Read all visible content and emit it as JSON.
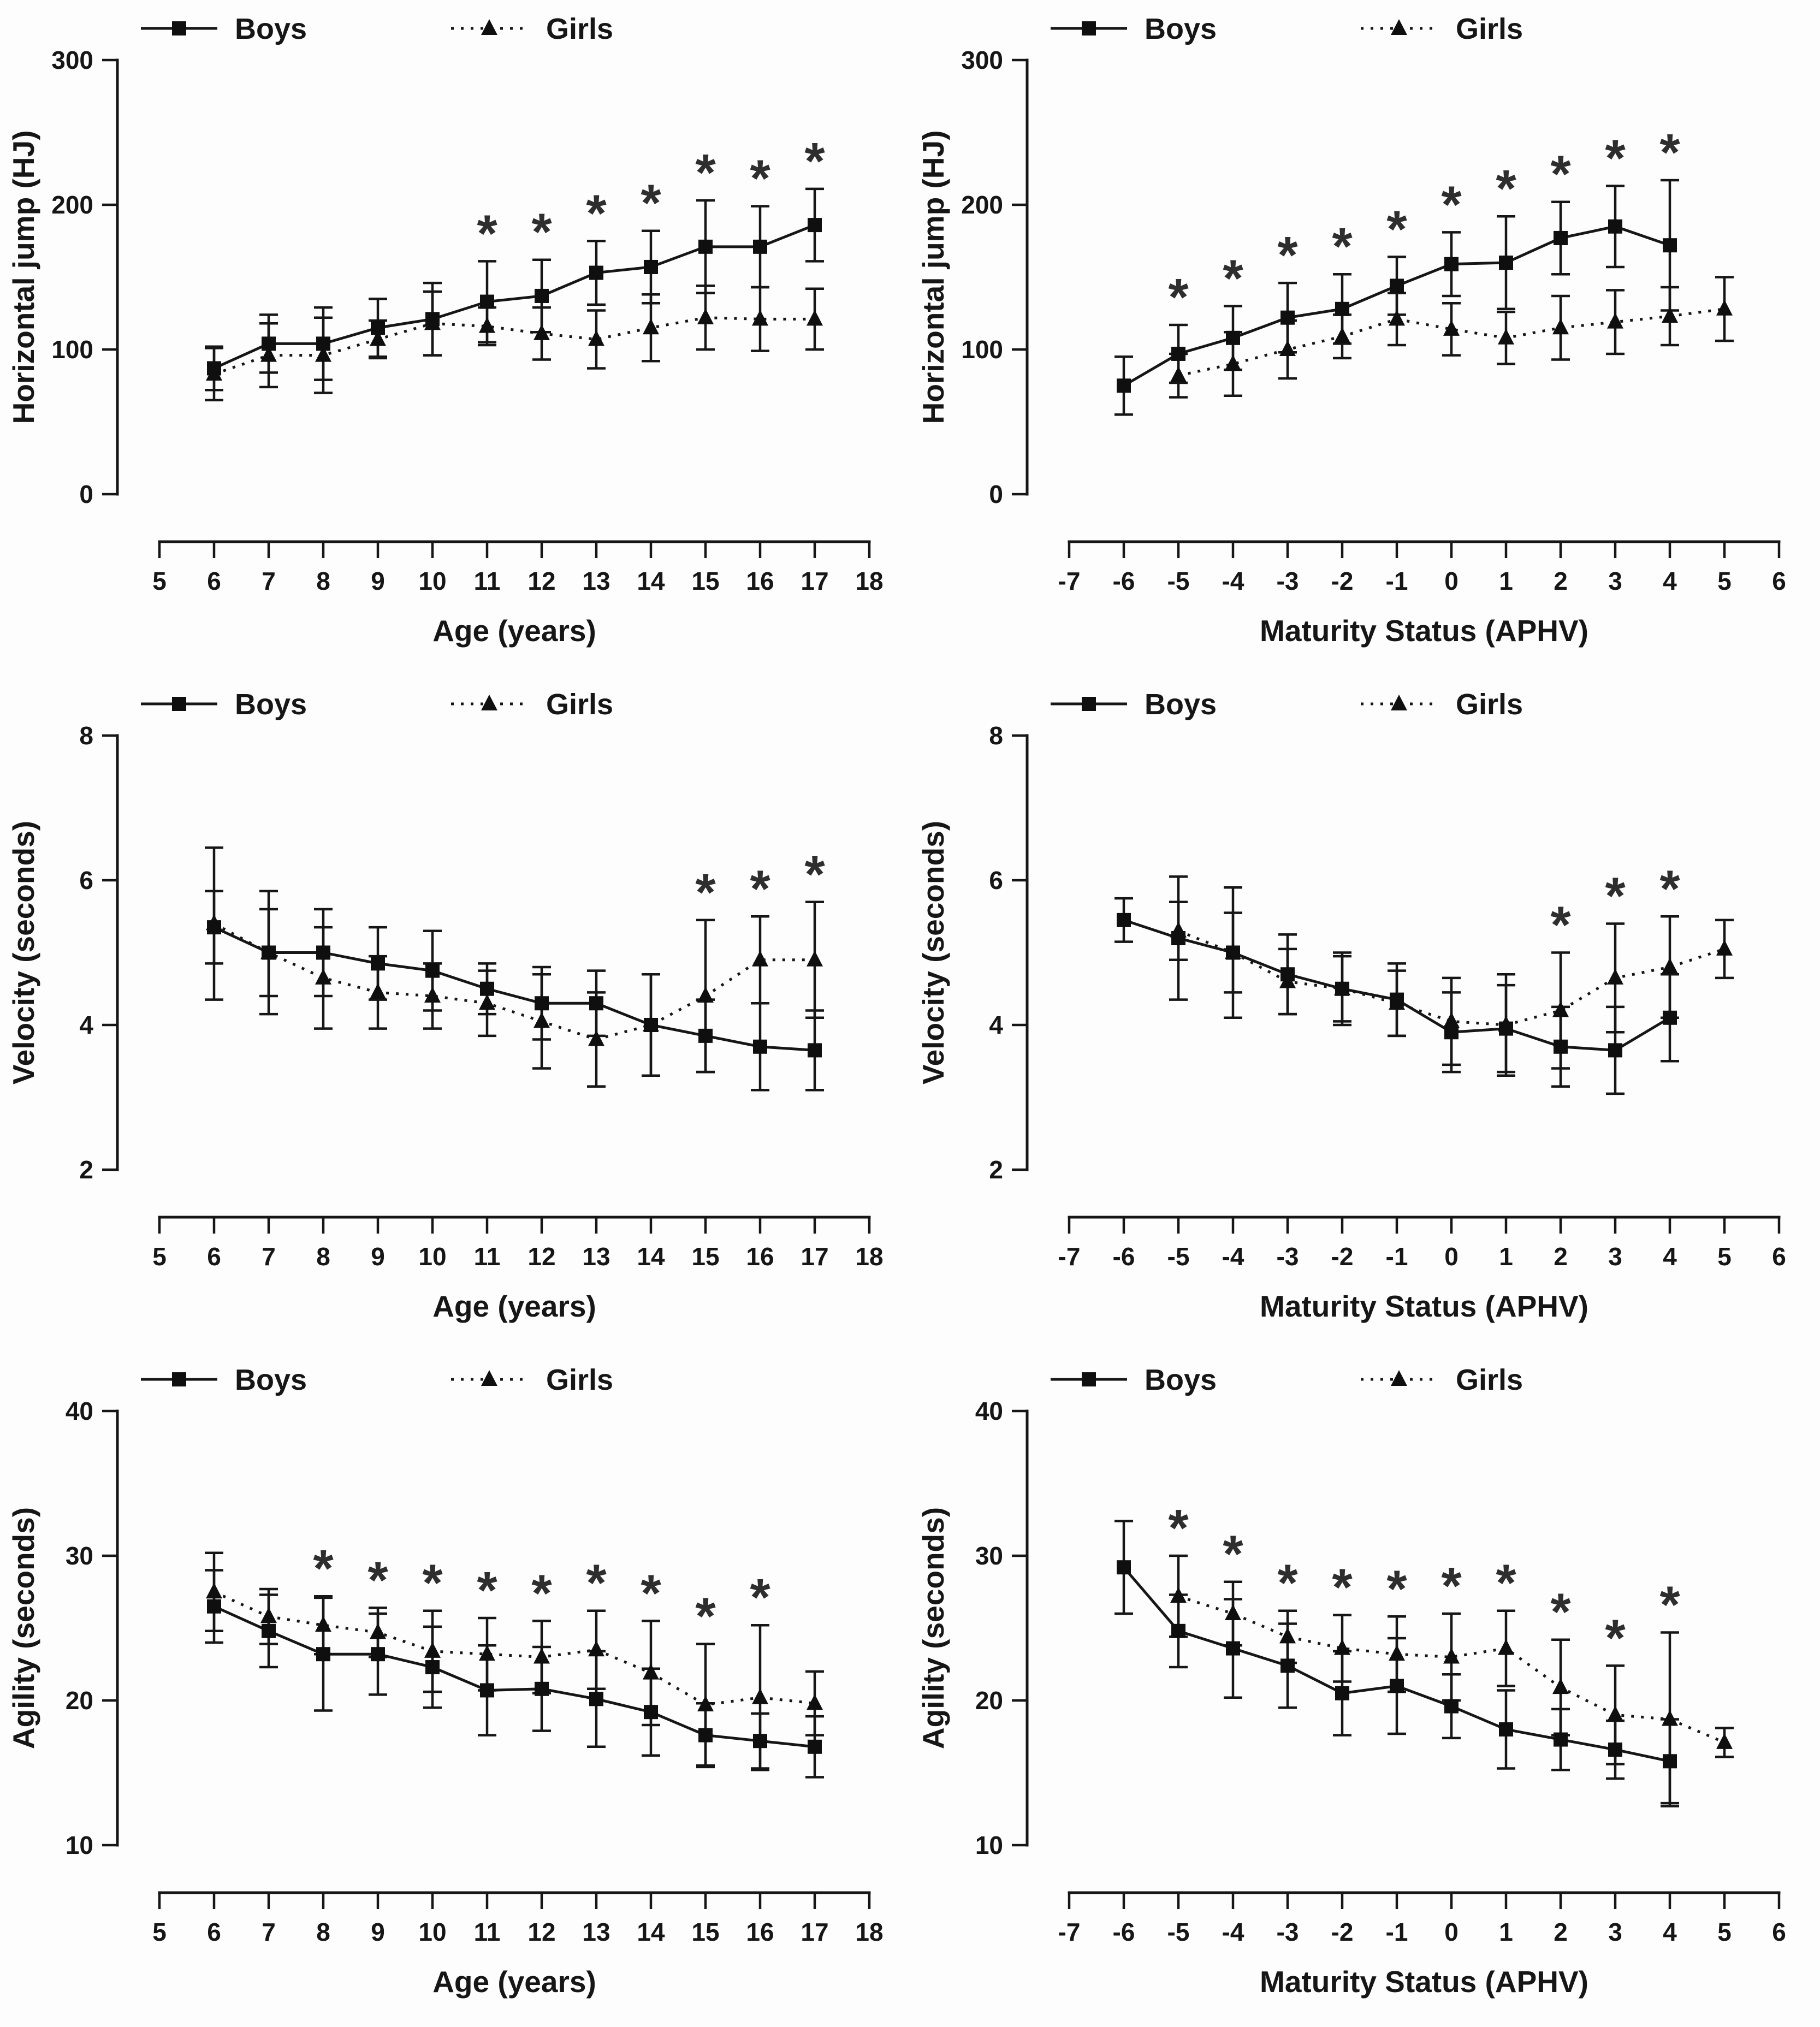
{
  "sig_marker": "*",
  "colors": {
    "ink": "#161616",
    "background": "#ffffff"
  },
  "legend": {
    "boys_label": "Boys",
    "girls_label": "Girls"
  },
  "chart_data": [
    {
      "type": "line",
      "panel": "top-left",
      "ylabel": "Horizontal jump (HJ)",
      "xlabel": "Age (years)",
      "ylim": [
        0,
        300
      ],
      "yticks": [
        0,
        100,
        200,
        300
      ],
      "xlim": [
        5,
        18
      ],
      "xticks": [
        5,
        6,
        7,
        8,
        9,
        10,
        11,
        12,
        13,
        14,
        15,
        16,
        17,
        18
      ],
      "grid": false,
      "legend_position": "top",
      "significant_x": [
        11,
        12,
        13,
        14,
        15,
        16,
        17
      ],
      "series": [
        {
          "name": "Boys",
          "marker": "square",
          "line": "solid",
          "x": [
            6,
            7,
            8,
            9,
            10,
            11,
            12,
            13,
            14,
            15,
            16,
            17
          ],
          "y": [
            87,
            104,
            104,
            115,
            121,
            133,
            137,
            153,
            157,
            171,
            171,
            186
          ],
          "err": [
            15,
            20,
            25,
            20,
            25,
            28,
            25,
            22,
            25,
            32,
            28,
            25
          ]
        },
        {
          "name": "Girls",
          "marker": "triangle",
          "line": "dotted",
          "x": [
            6,
            7,
            8,
            9,
            10,
            11,
            12,
            13,
            14,
            15,
            16,
            17
          ],
          "y": [
            83,
            96,
            96,
            107,
            118,
            116,
            111,
            107,
            115,
            122,
            121,
            121
          ],
          "err": [
            18,
            22,
            26,
            13,
            22,
            13,
            18,
            20,
            23,
            22,
            22,
            21
          ]
        }
      ]
    },
    {
      "type": "line",
      "panel": "top-right",
      "ylabel": "Horizontal jump (HJ)",
      "xlabel": "Maturity Status (APHV)",
      "ylim": [
        0,
        300
      ],
      "yticks": [
        0,
        100,
        200,
        300
      ],
      "xlim": [
        -7,
        6
      ],
      "xticks": [
        -7,
        -6,
        -5,
        -4,
        -3,
        -2,
        -1,
        0,
        1,
        2,
        3,
        4,
        5,
        6
      ],
      "grid": false,
      "legend_position": "top",
      "significant_x": [
        -5,
        -4,
        -3,
        -2,
        -1,
        0,
        1,
        2,
        3,
        4
      ],
      "series": [
        {
          "name": "Boys",
          "marker": "square",
          "line": "solid",
          "x": [
            -6,
            -5,
            -4,
            -3,
            -2,
            -1,
            0,
            1,
            2,
            3,
            4
          ],
          "y": [
            75,
            97,
            108,
            122,
            128,
            144,
            159,
            160,
            177,
            185,
            172
          ],
          "err": [
            20,
            20,
            22,
            24,
            24,
            20,
            22,
            32,
            25,
            28,
            45
          ]
        },
        {
          "name": "Girls",
          "marker": "triangle",
          "line": "dotted",
          "x": [
            -5,
            -4,
            -3,
            -2,
            -1,
            0,
            1,
            2,
            3,
            4,
            5
          ],
          "y": [
            82,
            90,
            100,
            109,
            121,
            114,
            108,
            115,
            119,
            123,
            128
          ],
          "err": [
            15,
            22,
            20,
            15,
            18,
            18,
            18,
            22,
            22,
            20,
            22
          ]
        }
      ]
    },
    {
      "type": "line",
      "panel": "middle-left",
      "ylabel": "Velocity (seconds)",
      "xlabel": "Age (years)",
      "ylim": [
        2,
        8
      ],
      "yticks": [
        2,
        4,
        6,
        8
      ],
      "xlim": [
        5,
        18
      ],
      "xticks": [
        5,
        6,
        7,
        8,
        9,
        10,
        11,
        12,
        13,
        14,
        15,
        16,
        17,
        18
      ],
      "grid": false,
      "legend_position": "top",
      "significant_x": [
        15,
        16,
        17
      ],
      "series": [
        {
          "name": "Boys",
          "marker": "square",
          "line": "solid",
          "x": [
            6,
            7,
            8,
            9,
            10,
            11,
            12,
            13,
            14,
            15,
            16,
            17
          ],
          "y": [
            5.35,
            5.0,
            5.0,
            4.85,
            4.75,
            4.5,
            4.3,
            4.3,
            4.0,
            3.85,
            3.7,
            3.65
          ],
          "err": [
            0.5,
            0.6,
            0.6,
            0.5,
            0.55,
            0.35,
            0.5,
            0.45,
            0.7,
            0.5,
            0.6,
            0.55
          ]
        },
        {
          "name": "Girls",
          "marker": "triangle",
          "line": "dotted",
          "x": [
            6,
            7,
            8,
            9,
            10,
            11,
            12,
            13,
            14,
            15,
            16,
            17
          ],
          "y": [
            5.4,
            5.0,
            4.65,
            4.45,
            4.4,
            4.3,
            4.05,
            3.8,
            4.0,
            4.4,
            4.9,
            4.9
          ],
          "err": [
            1.05,
            0.85,
            0.7,
            0.5,
            0.45,
            0.45,
            0.65,
            0.65,
            0.7,
            1.05,
            0.6,
            0.8
          ]
        }
      ]
    },
    {
      "type": "line",
      "panel": "middle-right",
      "ylabel": "Velocity (seconds)",
      "xlabel": "Maturity Status (APHV)",
      "ylim": [
        2,
        8
      ],
      "yticks": [
        2,
        4,
        6,
        8
      ],
      "xlim": [
        -7,
        6
      ],
      "xticks": [
        -7,
        -6,
        -5,
        -4,
        -3,
        -2,
        -1,
        0,
        1,
        2,
        3,
        4,
        5,
        6
      ],
      "grid": false,
      "legend_position": "top",
      "significant_x": [
        2,
        3,
        4
      ],
      "series": [
        {
          "name": "Boys",
          "marker": "square",
          "line": "solid",
          "x": [
            -6,
            -5,
            -4,
            -3,
            -2,
            -1,
            0,
            1,
            2,
            3,
            4
          ],
          "y": [
            5.45,
            5.2,
            5.0,
            4.7,
            4.5,
            4.35,
            3.9,
            3.95,
            3.7,
            3.65,
            4.1
          ],
          "err": [
            0.3,
            0.85,
            0.55,
            0.55,
            0.45,
            0.5,
            0.55,
            0.6,
            0.55,
            0.6,
            0.6
          ]
        },
        {
          "name": "Girls",
          "marker": "triangle",
          "line": "dotted",
          "x": [
            -5,
            -4,
            -3,
            -2,
            -1,
            0,
            1,
            2,
            3,
            4,
            5
          ],
          "y": [
            5.3,
            5.0,
            4.6,
            4.5,
            4.3,
            4.05,
            4.0,
            4.2,
            4.65,
            4.8,
            5.05
          ],
          "err": [
            0.4,
            0.9,
            0.45,
            0.5,
            0.45,
            0.6,
            0.7,
            0.8,
            0.75,
            0.7,
            0.4
          ]
        }
      ]
    },
    {
      "type": "line",
      "panel": "bottom-left",
      "ylabel": "Agility (seconds)",
      "xlabel": "Age (years)",
      "ylim": [
        10,
        40
      ],
      "yticks": [
        10,
        20,
        30,
        40
      ],
      "xlim": [
        5,
        18
      ],
      "xticks": [
        5,
        6,
        7,
        8,
        9,
        10,
        11,
        12,
        13,
        14,
        15,
        16,
        17,
        18
      ],
      "grid": false,
      "legend_position": "top",
      "significant_x": [
        8,
        9,
        10,
        11,
        12,
        13,
        14,
        15,
        16
      ],
      "series": [
        {
          "name": "Boys",
          "marker": "square",
          "line": "solid",
          "x": [
            6,
            7,
            8,
            9,
            10,
            11,
            12,
            13,
            14,
            15,
            16,
            17
          ],
          "y": [
            26.5,
            24.8,
            23.2,
            23.2,
            22.3,
            20.7,
            20.8,
            20.1,
            19.2,
            17.6,
            17.2,
            16.8
          ],
          "err": [
            2.5,
            2.5,
            3.9,
            2.8,
            2.8,
            3.1,
            2.9,
            3.3,
            3.0,
            2.2,
            1.9,
            2.1
          ]
        },
        {
          "name": "Girls",
          "marker": "triangle",
          "line": "dotted",
          "x": [
            6,
            7,
            8,
            9,
            10,
            11,
            12,
            13,
            14,
            15,
            16,
            17
          ],
          "y": [
            27.5,
            25.8,
            25.2,
            24.7,
            23.4,
            23.2,
            23.0,
            23.5,
            21.9,
            19.7,
            20.2,
            19.8
          ],
          "err": [
            2.7,
            1.9,
            2.0,
            1.7,
            2.8,
            2.5,
            2.5,
            2.7,
            3.6,
            4.2,
            5.0,
            2.2
          ]
        }
      ]
    },
    {
      "type": "line",
      "panel": "bottom-right",
      "ylabel": "Agility (seconds)",
      "xlabel": "Maturity Status (APHV)",
      "ylim": [
        10,
        40
      ],
      "yticks": [
        10,
        20,
        30,
        40
      ],
      "xlim": [
        -7,
        6
      ],
      "xticks": [
        -7,
        -6,
        -5,
        -4,
        -3,
        -2,
        -1,
        0,
        1,
        2,
        3,
        4,
        5,
        6
      ],
      "grid": false,
      "legend_position": "top",
      "significant_x": [
        -5,
        -4,
        -3,
        -2,
        -1,
        0,
        1,
        2,
        3,
        4
      ],
      "series": [
        {
          "name": "Boys",
          "marker": "square",
          "line": "solid",
          "x": [
            -6,
            -5,
            -4,
            -3,
            -2,
            -1,
            0,
            1,
            2,
            3,
            4
          ],
          "y": [
            29.2,
            24.8,
            23.6,
            22.4,
            20.5,
            21.0,
            19.6,
            18.0,
            17.3,
            16.6,
            15.8
          ],
          "err": [
            3.2,
            2.5,
            3.4,
            2.9,
            2.9,
            3.3,
            2.2,
            2.7,
            2.1,
            2.0,
            2.9
          ]
        },
        {
          "name": "Girls",
          "marker": "triangle",
          "line": "dotted",
          "x": [
            -5,
            -4,
            -3,
            -2,
            -1,
            0,
            1,
            2,
            3,
            4,
            5
          ],
          "y": [
            27.2,
            26.0,
            24.4,
            23.6,
            23.2,
            23.0,
            23.6,
            20.9,
            19.0,
            18.7,
            17.1
          ],
          "err": [
            2.8,
            2.2,
            1.8,
            2.3,
            2.6,
            3.0,
            2.6,
            3.3,
            3.4,
            6.0,
            1.0
          ]
        }
      ]
    }
  ]
}
